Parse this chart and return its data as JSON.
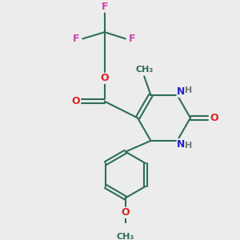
{
  "background_color": "#ececec",
  "bond_color": "#2d6e55",
  "bond_width": 1.5,
  "atom_colors": {
    "F": "#cc44aa",
    "O": "#dd2222",
    "N": "#2222cc",
    "H": "#777777",
    "C": "#2d6e55"
  },
  "fig_width": 3.0,
  "fig_height": 3.0,
  "dpi": 100,
  "xlim": [
    0,
    10
  ],
  "ylim": [
    0,
    10
  ]
}
